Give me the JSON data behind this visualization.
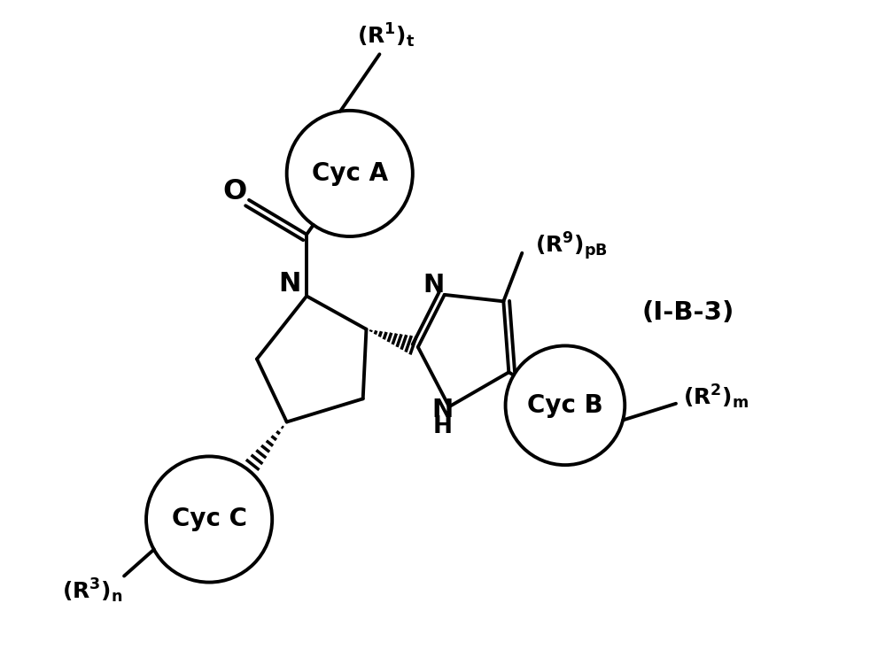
{
  "background_color": "#ffffff",
  "label_IB3": "(I-B-3)",
  "cyc_a_label": "Cyc A",
  "cyc_b_label": "Cyc B",
  "cyc_c_label": "Cyc C",
  "font_size_labels": 18,
  "font_size_cyc": 20,
  "font_size_atom": 22,
  "lw": 2.8
}
